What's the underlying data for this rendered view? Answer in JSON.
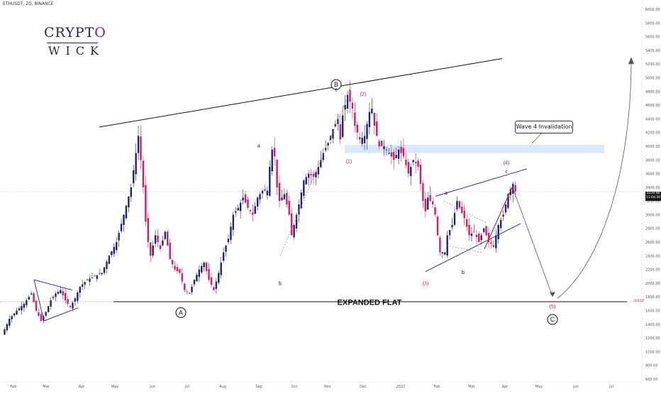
{
  "header": {
    "symbol_line": "ETHUSDT, 2D, BINANCE"
  },
  "logo": {
    "line1_pre": "CRYPT",
    "line1_o": "O",
    "line2": "WICK"
  },
  "callout": {
    "text": "Wave 4 Invalidation"
  },
  "last_price": {
    "value": "3339.98",
    "timer": "11:04:39"
  },
  "fib": {
    "label": "0.618"
  },
  "chart_data": {
    "type": "candlestick",
    "symbol": "ETHUSDT",
    "interval": "2D",
    "exchange": "BINANCE",
    "y_axis": {
      "range": [
        600,
        6000
      ],
      "ticks": [
        600,
        800,
        1000,
        1200,
        1400,
        1600,
        1800,
        2000,
        2200,
        2400,
        2600,
        2800,
        3000,
        3200,
        3400,
        3600,
        3800,
        4000,
        4200,
        4400,
        4600,
        4800,
        5000,
        5200,
        5400,
        5600,
        5800,
        6000
      ],
      "tick_labels": [
        "600.00",
        "800.00",
        "1000.00",
        "1200.00",
        "1400.00",
        "1600.00",
        "1800.00",
        "2000.00",
        "2200.00",
        "2400.00",
        "2600.00",
        "2800.00",
        "3000.00",
        "3200.00",
        "3400.00",
        "3600.00",
        "3800.00",
        "4000.00",
        "4200.00",
        "4400.00",
        "4600.00",
        "4800.00",
        "5000.00",
        "5200.00",
        "5400.00",
        "5600.00",
        "5800.00",
        "6000.00"
      ]
    },
    "x_axis": {
      "tick_labels": [
        "Feb",
        "Mar",
        "Apr",
        "May",
        "Jun",
        "Jul",
        "Aug",
        "Sep",
        "Oct",
        "Nov",
        "Dec",
        "2022",
        "Feb",
        "Mar",
        "Apr",
        "May",
        "Jun",
        "Jul"
      ]
    },
    "colors": {
      "up": "#1a237e",
      "down": "#d81b60",
      "annotation": "#c2185b",
      "channel": "#283593",
      "zone": "#dbe8fb"
    },
    "price_path": [
      [
        0,
        1250
      ],
      [
        3,
        1480
      ],
      [
        6,
        1600
      ],
      [
        9,
        1700
      ],
      [
        12,
        1850
      ],
      [
        14,
        1600
      ],
      [
        16,
        1450
      ],
      [
        18,
        1580
      ],
      [
        20,
        1750
      ],
      [
        22,
        1850
      ],
      [
        24,
        1900
      ],
      [
        26,
        1750
      ],
      [
        28,
        1650
      ],
      [
        30,
        1780
      ],
      [
        32,
        1950
      ],
      [
        35,
        2050
      ],
      [
        38,
        2100
      ],
      [
        41,
        2150
      ],
      [
        44,
        2400
      ],
      [
        47,
        2600
      ],
      [
        50,
        3000
      ],
      [
        53,
        3400
      ],
      [
        55,
        3900
      ],
      [
        56,
        4150
      ],
      [
        57,
        3800
      ],
      [
        58,
        3400
      ],
      [
        59,
        2900
      ],
      [
        60,
        2600
      ],
      [
        61,
        2400
      ],
      [
        63,
        2700
      ],
      [
        65,
        2500
      ],
      [
        67,
        2750
      ],
      [
        69,
        2350
      ],
      [
        71,
        2200
      ],
      [
        73,
        2150
      ],
      [
        75,
        1900
      ],
      [
        77,
        1850
      ],
      [
        79,
        2050
      ],
      [
        81,
        2200
      ],
      [
        83,
        2300
      ],
      [
        85,
        2050
      ],
      [
        87,
        1900
      ],
      [
        89,
        2150
      ],
      [
        91,
        2450
      ],
      [
        93,
        2650
      ],
      [
        95,
        3000
      ],
      [
        97,
        3100
      ],
      [
        99,
        3250
      ],
      [
        101,
        3100
      ],
      [
        103,
        3000
      ],
      [
        105,
        3250
      ],
      [
        107,
        3350
      ],
      [
        109,
        3350
      ],
      [
        110,
        3700
      ],
      [
        111,
        3950
      ],
      [
        112,
        3850
      ],
      [
        113,
        3400
      ],
      [
        114,
        3200
      ],
      [
        116,
        3300
      ],
      [
        118,
        3000
      ],
      [
        119,
        2700
      ],
      [
        120,
        2850
      ],
      [
        122,
        3150
      ],
      [
        124,
        3500
      ],
      [
        126,
        3600
      ],
      [
        128,
        3550
      ],
      [
        130,
        3700
      ],
      [
        132,
        3900
      ],
      [
        134,
        4050
      ],
      [
        136,
        4250
      ],
      [
        138,
        4400
      ],
      [
        139,
        4100
      ],
      [
        140,
        4450
      ],
      [
        141,
        4600
      ],
      [
        142,
        4750
      ],
      [
        143,
        4650
      ],
      [
        144,
        4550
      ],
      [
        145,
        4300
      ],
      [
        147,
        4100
      ],
      [
        149,
        4150
      ],
      [
        151,
        4500
      ],
      [
        152,
        4550
      ],
      [
        153,
        4300
      ],
      [
        155,
        4000
      ],
      [
        157,
        4000
      ],
      [
        159,
        3900
      ],
      [
        161,
        3800
      ],
      [
        163,
        3950
      ],
      [
        165,
        3850
      ],
      [
        167,
        3600
      ],
      [
        169,
        3800
      ],
      [
        171,
        3700
      ],
      [
        173,
        3200
      ],
      [
        174,
        3050
      ],
      [
        175,
        3250
      ],
      [
        177,
        3150
      ],
      [
        178,
        3000
      ],
      [
        179,
        2700
      ],
      [
        180,
        2450
      ],
      [
        182,
        2450
      ],
      [
        183,
        2700
      ],
      [
        185,
        2850
      ],
      [
        187,
        3200
      ],
      [
        188,
        3100
      ],
      [
        190,
        2950
      ],
      [
        192,
        2700
      ],
      [
        194,
        2750
      ],
      [
        196,
        2600
      ],
      [
        198,
        2800
      ],
      [
        200,
        2600
      ],
      [
        202,
        2550
      ],
      [
        204,
        2850
      ],
      [
        206,
        3000
      ],
      [
        208,
        3300
      ],
      [
        210,
        3450
      ],
      [
        211,
        3339.98
      ]
    ],
    "annotations": [
      {
        "text": "B",
        "price": 4900,
        "circled": true
      },
      {
        "text": "c",
        "price": 4830
      },
      {
        "text": "(2)",
        "price": 4760
      },
      {
        "text": "a",
        "price": 4010
      },
      {
        "text": "(1)",
        "price": 3780
      },
      {
        "text": "(4)",
        "price": 3760
      },
      {
        "text": "c",
        "price": 3630
      },
      {
        "text": "a",
        "price": 3320
      },
      {
        "text": "b",
        "price": 2620
      },
      {
        "text": "b",
        "price": 2160
      },
      {
        "text": "(3)",
        "price": 2000
      },
      {
        "text": "A",
        "price": 1570,
        "circled": true
      },
      {
        "text": "(5)",
        "price": 1660
      },
      {
        "text": "C",
        "price": 1470,
        "circled": true
      },
      {
        "text": "EXPANDED FLAT",
        "price": 1680
      }
    ],
    "levels": {
      "invalidation_zone": [
        3900,
        4020
      ],
      "flat_base": 1730,
      "fib_0_618": 1730
    }
  }
}
